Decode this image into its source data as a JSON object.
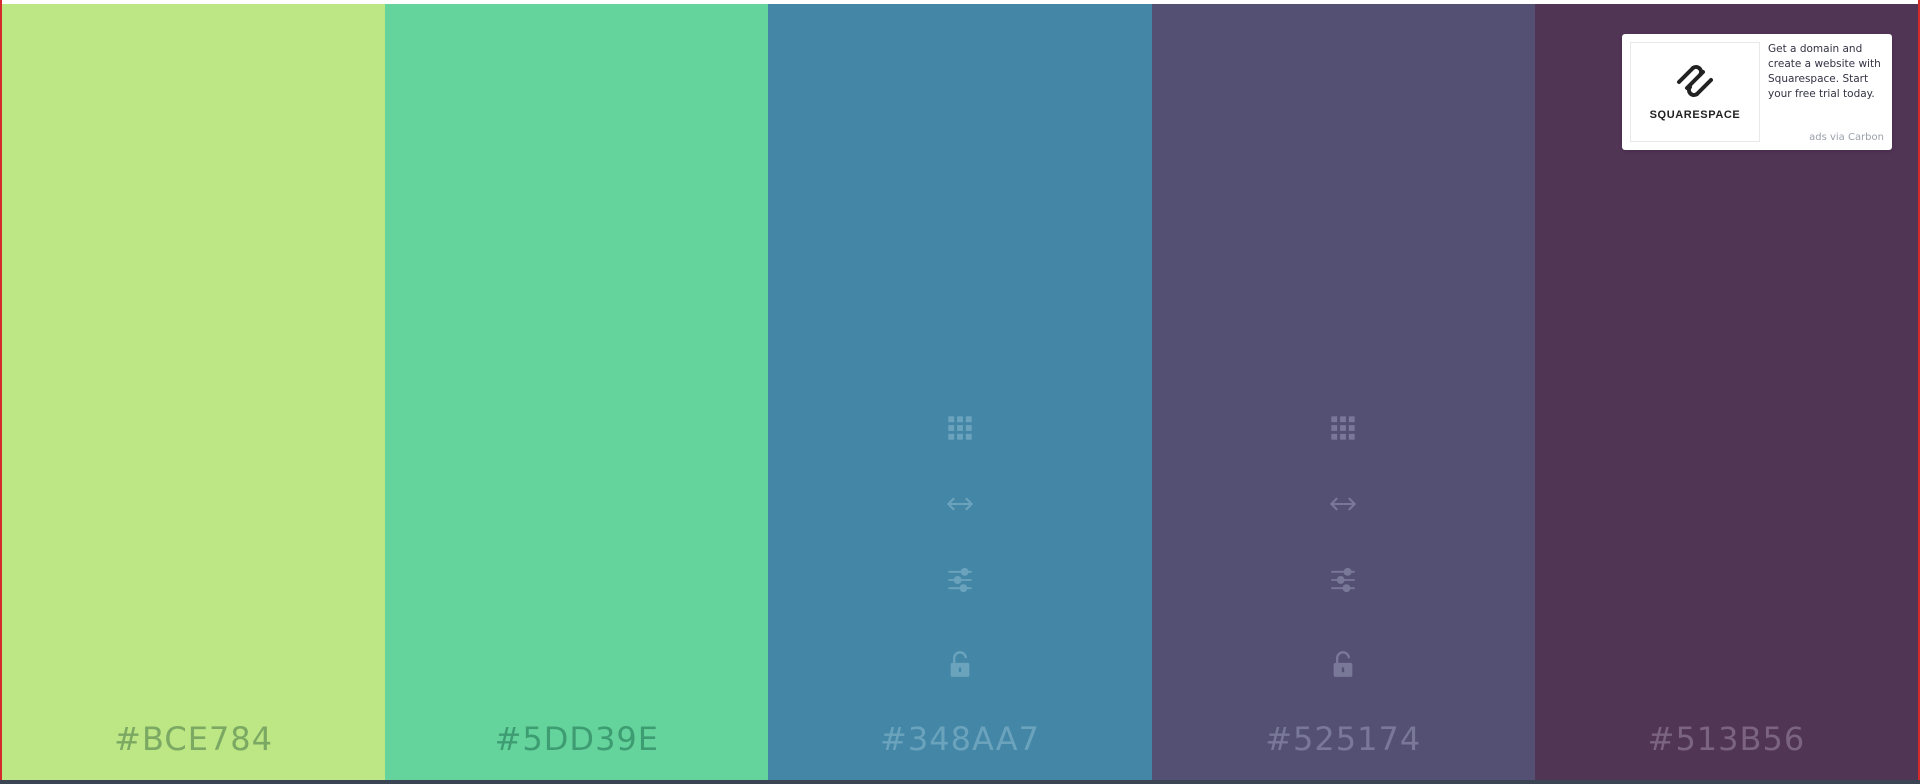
{
  "palette": {
    "colors": [
      {
        "hex": "#BCE784",
        "bg": "#BCE784",
        "text_color": "#7BA862",
        "show_tools": false
      },
      {
        "hex": "#5DD39E",
        "bg": "#65D49C",
        "text_color": "#3E9C73",
        "show_tools": false
      },
      {
        "hex": "#348AA7",
        "bg": "#4486A6",
        "text_color": "#6BA3BD",
        "show_tools": true
      },
      {
        "hex": "#525174",
        "bg": "#535074",
        "text_color": "#7A7899",
        "show_tools": true
      },
      {
        "hex": "#513B56",
        "bg": "#513555",
        "text_color": "#7A6480",
        "show_tools": false
      }
    ],
    "tool_icons": [
      "grid-icon",
      "arrows-horizontal-icon",
      "sliders-icon",
      "lock-icon"
    ]
  },
  "ad": {
    "brand": "SQUARESPACE",
    "text": "Get a domain and create a website with Squarespace. Start your free trial today.",
    "via": "ads via Carbon"
  }
}
